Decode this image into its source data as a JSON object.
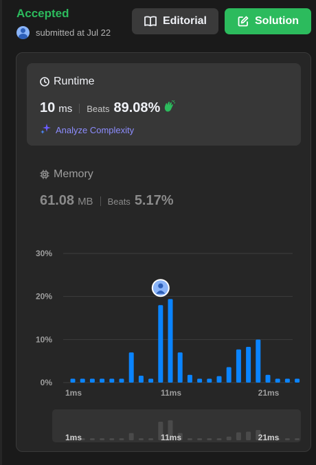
{
  "header": {
    "status": "Accepted",
    "submitted_text": "submitted at Jul 22",
    "editorial_label": "Editorial",
    "solution_label": "Solution"
  },
  "runtime": {
    "title": "Runtime",
    "value": "10",
    "unit": "ms",
    "beats_label": "Beats",
    "beats_percent": "89.08%",
    "analyze_label": "Analyze Complexity"
  },
  "memory": {
    "title": "Memory",
    "value": "61.08",
    "unit": "MB",
    "beats_label": "Beats",
    "beats_percent": "5.17%"
  },
  "colors": {
    "accent_green": "#2cbb5d",
    "bar_blue": "#0a84ff",
    "mini_bar_gray": "#4a4a4a",
    "analyze_purple": "#7a7aff"
  },
  "icons": {
    "editorial": "book-icon",
    "solution": "edit-icon",
    "runtime": "clock-icon",
    "memory": "chip-icon",
    "analyze": "sparkle-icon",
    "beats": "clap-icon",
    "marker": "user-avatar-icon"
  },
  "chart_data": {
    "type": "bar",
    "x": [
      1,
      2,
      3,
      4,
      5,
      6,
      7,
      8,
      9,
      10,
      11,
      12,
      13,
      14,
      15,
      16,
      17,
      18,
      19,
      20,
      21,
      22,
      23,
      24
    ],
    "values": [
      0.9,
      0.9,
      0.9,
      0.9,
      0.9,
      0.9,
      7.0,
      1.6,
      0.9,
      18.0,
      19.4,
      7.0,
      1.8,
      0.9,
      0.9,
      1.5,
      3.6,
      7.7,
      8.3,
      10.0,
      1.8,
      0.9,
      0.9,
      0.9
    ],
    "ylim": [
      0,
      30
    ],
    "y_ticks": [
      "0%",
      "10%",
      "20%",
      "30%"
    ],
    "y_tick_values": [
      0,
      10,
      20,
      30
    ],
    "x_tick_labels": [
      "1ms",
      "11ms",
      "21ms"
    ],
    "x_tick_values": [
      1,
      11,
      21
    ],
    "highlighted_x": 10,
    "grid": true
  }
}
